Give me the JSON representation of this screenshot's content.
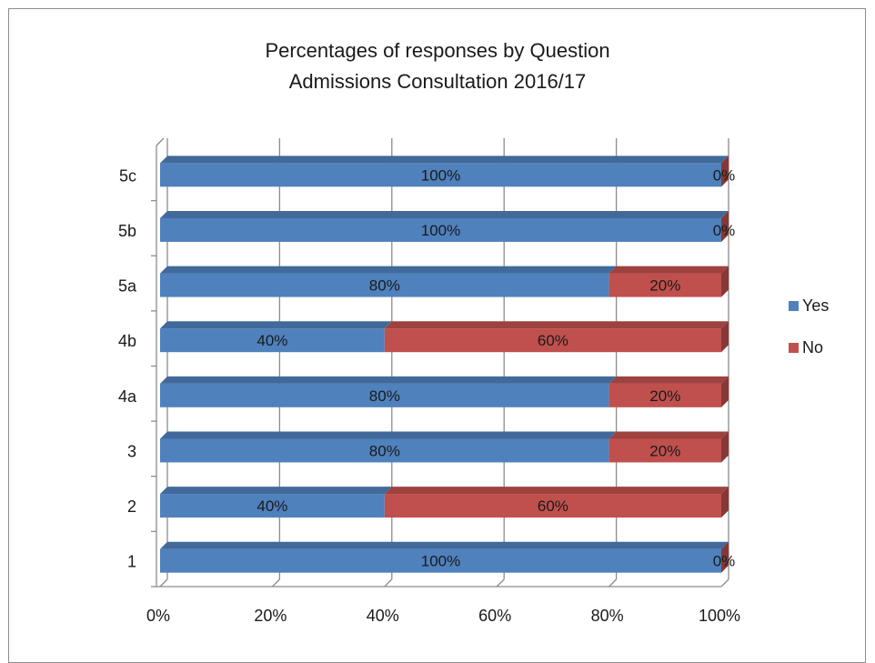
{
  "chart_data": {
    "type": "bar",
    "orientation": "horizontal",
    "stacked": "100%",
    "title": "Percentages of responses by Question",
    "subtitle": "Admissions Consultation 2016/17",
    "categories": [
      "1",
      "2",
      "3",
      "4a",
      "4b",
      "5a",
      "5b",
      "5c"
    ],
    "series": [
      {
        "name": "Yes",
        "color": "#4f81bd",
        "values": [
          100,
          40,
          80,
          80,
          40,
          80,
          100,
          100
        ],
        "labels": [
          "100%",
          "40%",
          "80%",
          "80%",
          "40%",
          "80%",
          "100%",
          "100%"
        ]
      },
      {
        "name": "No",
        "color": "#c0504d",
        "values": [
          0,
          60,
          20,
          20,
          60,
          20,
          0,
          0
        ],
        "labels": [
          "0%",
          "60%",
          "20%",
          "20%",
          "60%",
          "20%",
          "0%",
          "0%"
        ]
      }
    ],
    "x_ticks": [
      "0%",
      "20%",
      "40%",
      "60%",
      "80%",
      "100%"
    ],
    "xlim": [
      0,
      100
    ],
    "grid": true,
    "legend_position": "right"
  }
}
